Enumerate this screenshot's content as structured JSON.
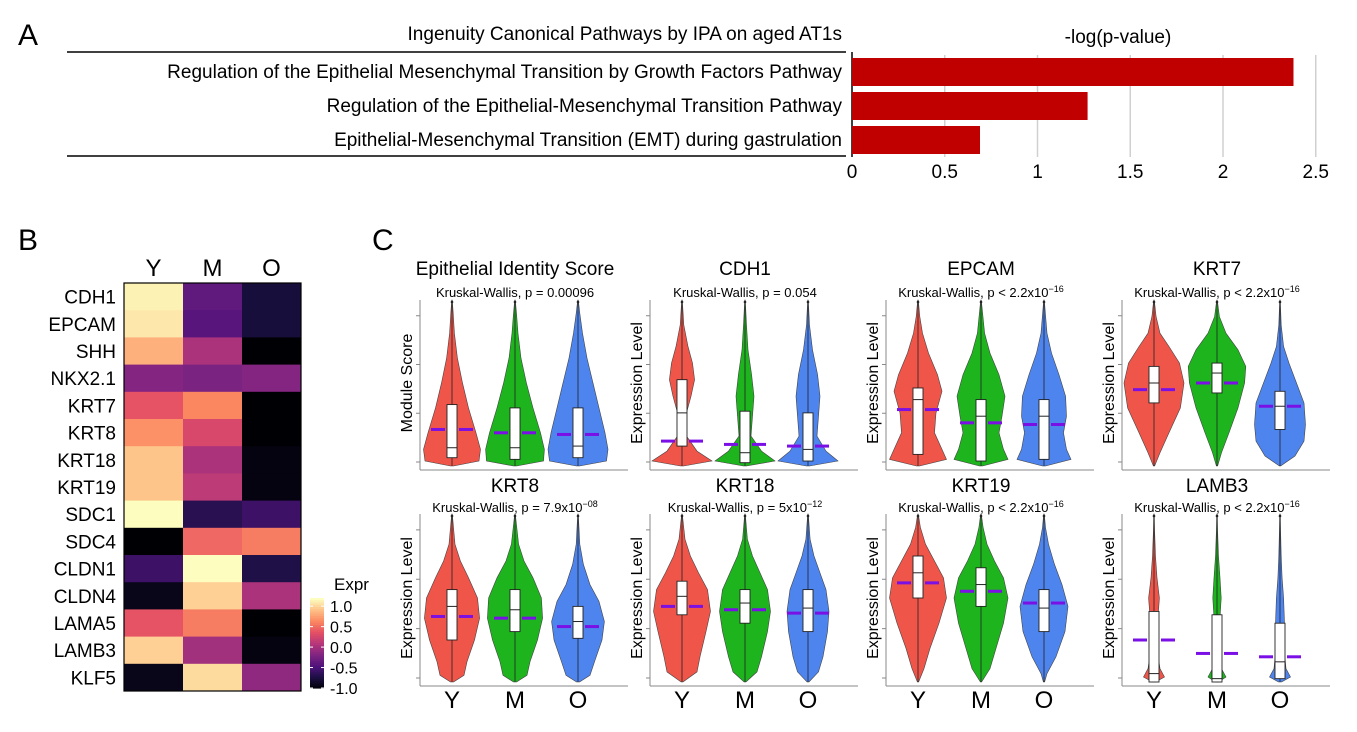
{
  "panel_labels": {
    "a": "A",
    "b": "B",
    "c": "C"
  },
  "colors": {
    "bar": "#c00000",
    "group_y": "#f0554a",
    "group_m": "#1db41d",
    "group_o": "#4d84ee",
    "mean_line": "#7b10e6"
  },
  "chart_data": [
    {
      "type": "bar",
      "orientation": "horizontal",
      "title": "Ingenuity Canonical Pathways by IPA on aged AT1s",
      "xlabel": "-log(p-value)",
      "categories": [
        "Regulation of the Epithelial Mesenchymal Transition by Growth Factors Pathway",
        "Regulation of the Epithelial-Mesenchymal Transition Pathway",
        "Epithelial-Mesenchymal Transition (EMT) during gastrulation"
      ],
      "values": [
        2.38,
        1.27,
        0.69
      ],
      "xlim": [
        0,
        2.5
      ],
      "xticks": [
        "0",
        "0.5",
        "1",
        "1.5",
        "2",
        "2.5"
      ],
      "grid": "vertical"
    },
    {
      "type": "heatmap",
      "columns": [
        "Y",
        "M",
        "O"
      ],
      "rows": [
        "CDH1",
        "EPCAM",
        "SHH",
        "NKX2.1",
        "KRT7",
        "KRT8",
        "KRT18",
        "KRT19",
        "SDC1",
        "SDC4",
        "CLDN1",
        "CLDN4",
        "LAMA5",
        "LAMB3",
        "KLF5"
      ],
      "values": [
        [
          1.15,
          -0.35,
          -0.75
        ],
        [
          1.1,
          -0.4,
          -0.75
        ],
        [
          0.85,
          0.05,
          -1.0
        ],
        [
          -0.15,
          -0.2,
          -0.15
        ],
        [
          0.4,
          0.65,
          -1.05
        ],
        [
          0.7,
          0.3,
          -1.0
        ],
        [
          0.95,
          0.05,
          -0.95
        ],
        [
          0.95,
          0.15,
          -0.95
        ],
        [
          1.25,
          -0.65,
          -0.55
        ],
        [
          -1.05,
          0.5,
          0.6
        ],
        [
          -0.55,
          1.2,
          -0.7
        ],
        [
          -0.9,
          1.0,
          0.05
        ],
        [
          0.4,
          0.6,
          -1.0
        ],
        [
          1.0,
          0.0,
          -0.95
        ],
        [
          -0.9,
          1.05,
          -0.1
        ]
      ],
      "legend": {
        "title": "Expr",
        "ticks": [
          "1.0",
          "0.5",
          "0.0",
          "-0.5",
          "-1.0"
        ],
        "tick_values": [
          1.0,
          0.5,
          0.0,
          -0.5,
          -1.0
        ],
        "range": [
          -1.0,
          1.2
        ]
      }
    },
    {
      "type": "violin",
      "groups": [
        "Y",
        "M",
        "O"
      ],
      "panels": [
        {
          "title": "Epithelial Identity Score",
          "ylabel": "Module Score",
          "stat": "Kruskal-Wallis, p = 0.00096",
          "stat_prefix": "",
          "stat_exp": "",
          "means": [
            0.22,
            0.2,
            0.19
          ],
          "medians": [
            0.11,
            0.11,
            0.12
          ]
        },
        {
          "title": "CDH1",
          "ylabel": "Expression Level",
          "stat": "Kruskal-Wallis, p = 0.054",
          "stat_prefix": "",
          "stat_exp": "",
          "means": [
            0.15,
            0.13,
            0.12
          ],
          "medians": [
            0.32,
            0.08,
            0.1
          ]
        },
        {
          "title": "EPCAM",
          "ylabel": "Expression Level",
          "stat": "",
          "stat_prefix": "Kruskal-Wallis, p < 2.2x10",
          "stat_exp": "−16",
          "means": [
            0.34,
            0.26,
            0.25
          ],
          "medians": [
            0.4,
            0.3,
            0.3
          ]
        },
        {
          "title": "KRT7",
          "ylabel": "Expression Level",
          "stat": "",
          "stat_prefix": "Kruskal-Wallis, p < 2.2x10",
          "stat_exp": "−16",
          "means": [
            0.46,
            0.5,
            0.36
          ],
          "medians": [
            0.5,
            0.56,
            0.36
          ]
        },
        {
          "title": "KRT8",
          "ylabel": "Expression Level",
          "stat": "",
          "stat_prefix": "Kruskal-Wallis, p = 7.9x10",
          "stat_exp": "−08",
          "means": [
            0.39,
            0.38,
            0.33
          ],
          "medians": [
            0.45,
            0.43,
            0.36
          ]
        },
        {
          "title": "KRT18",
          "ylabel": "Expression Level",
          "stat": "",
          "stat_prefix": "Kruskal-Wallis, p = 5x10",
          "stat_exp": "−12",
          "means": [
            0.45,
            0.43,
            0.41
          ],
          "medians": [
            0.51,
            0.47,
            0.44
          ]
        },
        {
          "title": "KRT19",
          "ylabel": "Expression Level",
          "stat": "",
          "stat_prefix": "Kruskal-Wallis, p < 2.2x10",
          "stat_exp": "−16",
          "means": [
            0.59,
            0.54,
            0.47
          ],
          "medians": [
            0.65,
            0.58,
            0.44
          ]
        },
        {
          "title": "LAMB3",
          "ylabel": "Expression Level",
          "stat": "",
          "stat_prefix": "Kruskal-Wallis, p < 2.2x10",
          "stat_exp": "−16",
          "means": [
            0.25,
            0.17,
            0.15
          ],
          "medians": [
            0.05,
            0.02,
            0.12
          ]
        }
      ]
    }
  ]
}
